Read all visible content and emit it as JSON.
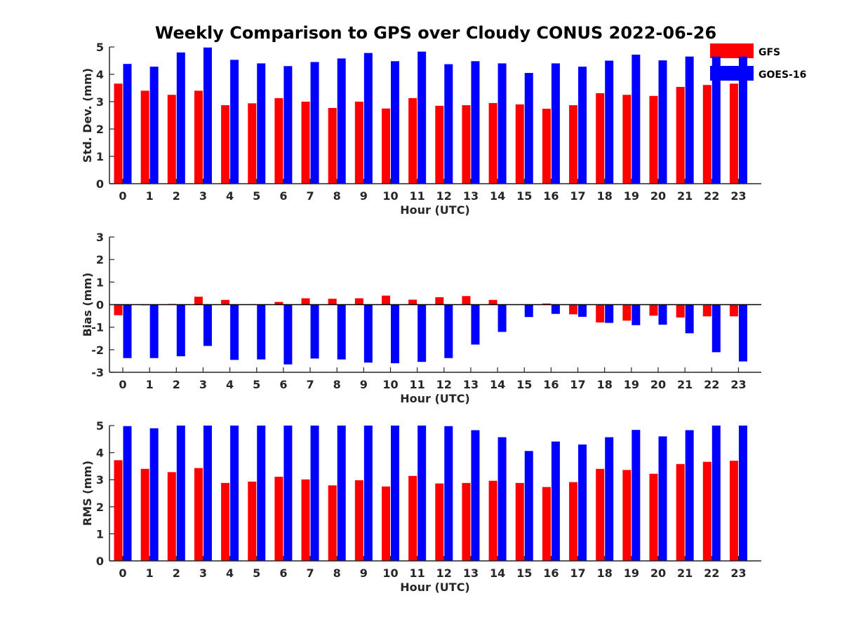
{
  "title": "Weekly Comparison to GPS over Cloudy CONUS 2022-06-26",
  "colors": {
    "gfs": "#ff0000",
    "goes": "#0000ff",
    "axis": "#262626"
  },
  "legend": {
    "gfs": "GFS",
    "goes": "GOES-16",
    "placement": "top-right"
  },
  "chart_data": [
    {
      "type": "bar",
      "ylabel": "Std. Dev. (mm)",
      "xlabel": "Hour (UTC)",
      "ylim": [
        0,
        5
      ],
      "yticks": [
        0,
        1,
        2,
        3,
        4,
        5
      ],
      "categories": [
        "0",
        "1",
        "2",
        "3",
        "4",
        "5",
        "6",
        "7",
        "8",
        "9",
        "10",
        "11",
        "12",
        "13",
        "14",
        "15",
        "16",
        "17",
        "18",
        "19",
        "20",
        "21",
        "22",
        "23"
      ],
      "series": [
        {
          "name": "GFS",
          "values": [
            3.66,
            3.4,
            3.25,
            3.4,
            2.87,
            2.94,
            3.13,
            3.0,
            2.77,
            3.0,
            2.75,
            3.13,
            2.85,
            2.87,
            2.95,
            2.9,
            2.74,
            2.87,
            3.31,
            3.25,
            3.21,
            3.54,
            3.61,
            3.66
          ]
        },
        {
          "name": "GOES-16",
          "values": [
            4.38,
            4.28,
            4.8,
            4.98,
            4.53,
            4.4,
            4.3,
            4.45,
            4.58,
            4.78,
            4.48,
            4.83,
            4.37,
            4.48,
            4.4,
            4.05,
            4.4,
            4.28,
            4.5,
            4.72,
            4.51,
            4.65,
            4.65,
            4.65
          ]
        }
      ]
    },
    {
      "type": "bar",
      "ylabel": "Bias (mm)",
      "xlabel": "Hour (UTC)",
      "ylim": [
        -3,
        3
      ],
      "yticks": [
        -3,
        -2,
        -1,
        0,
        1,
        2,
        3
      ],
      "categories": [
        "0",
        "1",
        "2",
        "3",
        "4",
        "5",
        "6",
        "7",
        "8",
        "9",
        "10",
        "11",
        "12",
        "13",
        "14",
        "15",
        "16",
        "17",
        "18",
        "19",
        "20",
        "21",
        "22",
        "23"
      ],
      "series": [
        {
          "name": "GFS",
          "values": [
            -0.47,
            -0.03,
            0.03,
            0.35,
            0.21,
            0.02,
            0.12,
            0.28,
            0.26,
            0.28,
            0.4,
            0.22,
            0.33,
            0.38,
            0.21,
            0.01,
            0.05,
            -0.43,
            -0.79,
            -0.71,
            -0.49,
            -0.57,
            -0.52,
            -0.52
          ]
        },
        {
          "name": "GOES-16",
          "values": [
            -2.37,
            -2.37,
            -2.29,
            -1.83,
            -2.45,
            -2.43,
            -2.65,
            -2.39,
            -2.43,
            -2.57,
            -2.6,
            -2.54,
            -2.37,
            -1.77,
            -1.21,
            -0.55,
            -0.41,
            -0.54,
            -0.81,
            -0.91,
            -0.89,
            -1.27,
            -2.11,
            -2.52
          ]
        }
      ]
    },
    {
      "type": "bar",
      "ylabel": "RMS (mm)",
      "xlabel": "Hour (UTC)",
      "ylim": [
        0,
        5
      ],
      "yticks": [
        0,
        1,
        2,
        3,
        4,
        5
      ],
      "categories": [
        "0",
        "1",
        "2",
        "3",
        "4",
        "5",
        "6",
        "7",
        "8",
        "9",
        "10",
        "11",
        "12",
        "13",
        "14",
        "15",
        "16",
        "17",
        "18",
        "19",
        "20",
        "21",
        "22",
        "23"
      ],
      "series": [
        {
          "name": "GFS",
          "values": [
            3.72,
            3.4,
            3.28,
            3.43,
            2.88,
            2.93,
            3.11,
            3.01,
            2.79,
            2.98,
            2.75,
            3.14,
            2.86,
            2.88,
            2.96,
            2.88,
            2.73,
            2.91,
            3.4,
            3.36,
            3.22,
            3.58,
            3.66,
            3.7
          ]
        },
        {
          "name": "GOES-16",
          "values": [
            4.98,
            4.9,
            5.0,
            5.0,
            5.0,
            5.0,
            5.0,
            5.0,
            5.0,
            5.0,
            5.0,
            5.0,
            4.98,
            4.83,
            4.57,
            4.06,
            4.41,
            4.3,
            4.57,
            4.84,
            4.6,
            4.83,
            5.0,
            5.0
          ]
        }
      ]
    }
  ]
}
